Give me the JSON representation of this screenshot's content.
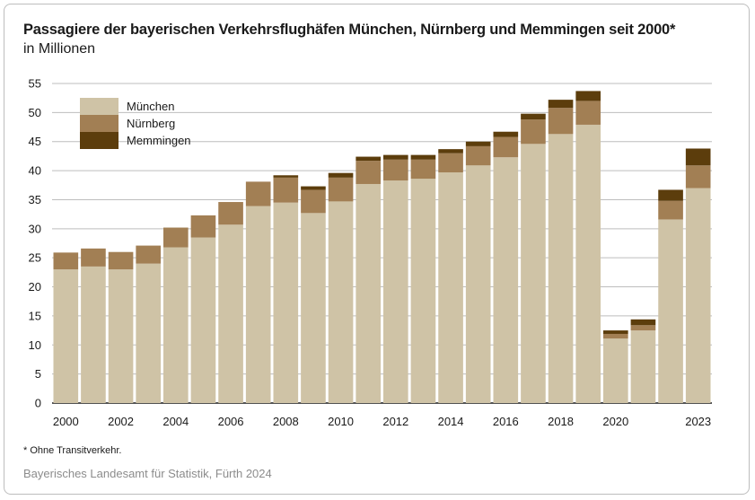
{
  "title": "Passagiere der bayerischen Verkehrsflughäfen München, Nürnberg und Memmingen seit 2000*",
  "subtitle": "in Millionen",
  "footnote": "* Ohne Transitverkehr.",
  "source": "Bayerisches Landesamt für Statistik, Fürth 2024",
  "chart_data": {
    "type": "bar",
    "stacked": true,
    "categories": [
      "2000",
      "2001",
      "2002",
      "2003",
      "2004",
      "2005",
      "2006",
      "2007",
      "2008",
      "2009",
      "2010",
      "2011",
      "2012",
      "2013",
      "2014",
      "2015",
      "2016",
      "2017",
      "2018",
      "2019",
      "2020",
      "2021",
      "2022",
      "2023"
    ],
    "x_tick_labels": [
      "2000",
      "",
      "2002",
      "",
      "2004",
      "",
      "2006",
      "",
      "2008",
      "",
      "2010",
      "",
      "2012",
      "",
      "2014",
      "",
      "2016",
      "",
      "2018",
      "",
      "2020",
      "",
      "",
      "2023"
    ],
    "series": [
      {
        "name": "München",
        "color": "#cfc3a6",
        "values": [
          23.0,
          23.5,
          23.0,
          24.0,
          26.8,
          28.5,
          30.7,
          33.9,
          34.5,
          32.7,
          34.7,
          37.7,
          38.3,
          38.6,
          39.7,
          40.9,
          42.3,
          44.6,
          46.3,
          47.9,
          11.1,
          12.5,
          31.6,
          37.0
        ]
      },
      {
        "name": "Nürnberg",
        "color": "#a27f54",
        "values": [
          2.9,
          3.1,
          3.0,
          3.1,
          3.4,
          3.8,
          3.9,
          4.2,
          4.3,
          4.0,
          4.1,
          4.0,
          3.6,
          3.3,
          3.3,
          3.3,
          3.5,
          4.2,
          4.5,
          4.1,
          0.8,
          0.9,
          3.2,
          3.9
        ]
      },
      {
        "name": "Memmingen",
        "color": "#5c3d0c",
        "values": [
          0,
          0,
          0,
          0,
          0,
          0,
          0,
          0,
          0.4,
          0.6,
          0.8,
          0.7,
          0.8,
          0.8,
          0.7,
          0.8,
          0.9,
          1.0,
          1.4,
          1.7,
          0.6,
          1.0,
          1.9,
          2.9
        ]
      }
    ],
    "ylim": [
      0,
      55
    ],
    "yticks": [
      0,
      5,
      10,
      15,
      20,
      25,
      30,
      35,
      40,
      45,
      50,
      55
    ],
    "grid": true,
    "legend_position": "top-left"
  }
}
